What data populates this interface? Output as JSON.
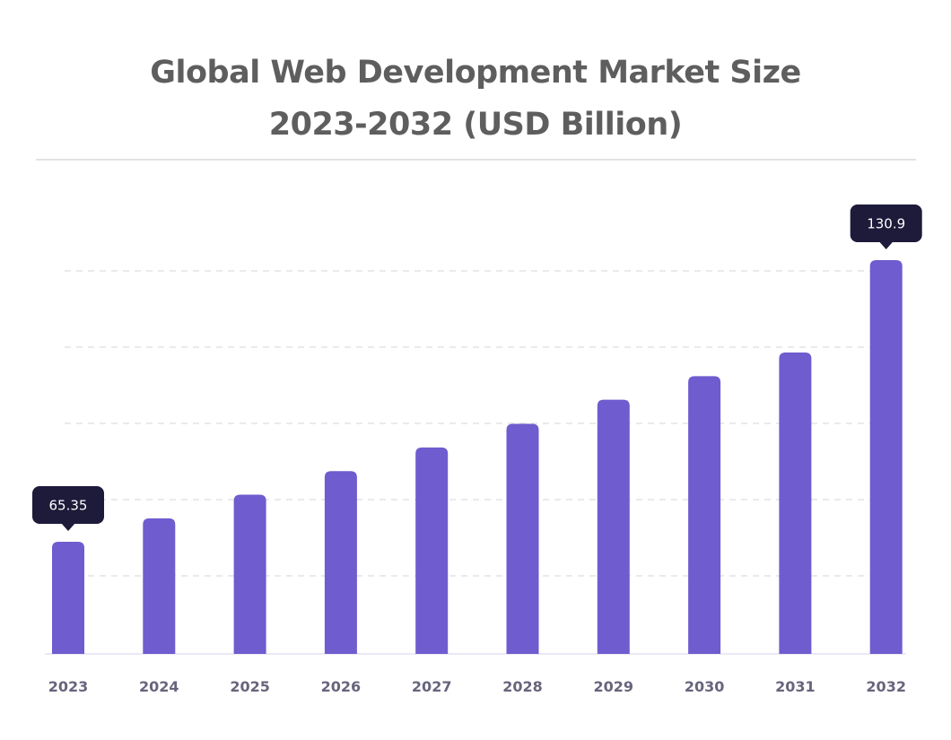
{
  "title": {
    "line1": "Global Web Development Market Size",
    "line2": "2023-2032 (USD Billion)"
  },
  "colors": {
    "bar": "#6f5ccf",
    "callout": "#1d1a3a",
    "title": "#5e5e5e",
    "tick": "#67657c",
    "grid": "#e4e4e4"
  },
  "chart_data": {
    "type": "bar",
    "title": "Global Web Development Market Size 2023-2032 (USD Billion)",
    "categories": [
      "2023",
      "2024",
      "2025",
      "2026",
      "2027",
      "2028",
      "2029",
      "2030",
      "2031",
      "2032"
    ],
    "values": [
      65.35,
      70.8,
      76.3,
      81.8,
      87.3,
      92.8,
      98.4,
      103.9,
      109.4,
      130.9
    ],
    "data_labels": [
      {
        "index": 0,
        "text": "65.35"
      },
      {
        "index": 9,
        "text": "130.9"
      }
    ],
    "xlabel": "",
    "ylabel": "",
    "grid": "horizontal dashed",
    "legend": "none"
  }
}
